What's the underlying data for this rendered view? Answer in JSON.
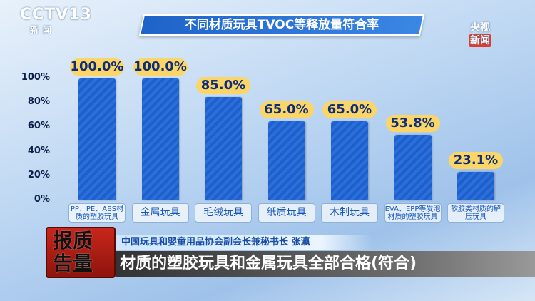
{
  "channel_logo": {
    "name": "CCTV13",
    "sub": "新闻"
  },
  "corner_logo": {
    "line1": "央视",
    "line2": "新闻"
  },
  "lower_third": {
    "program_seal": "报质告量",
    "speaker": "中国玩具和婴童用品协会副会长兼秘书长 张瀛",
    "caption": "材质的塑胶玩具和金属玩具全部合格(符合)"
  },
  "chart_data": {
    "type": "bar",
    "title": "不同材质玩具TVOC等释放量符合率",
    "categories": [
      "PP、PE、ABS材质的塑胶玩具",
      "金属玩具",
      "毛绒玩具",
      "纸质玩具",
      "木制玩具",
      "EVA、EPP等发泡材质的塑胶玩具",
      "软胶类材质的解压玩具"
    ],
    "values": [
      100.0,
      100.0,
      85.0,
      65.0,
      65.0,
      53.8,
      23.1
    ],
    "data_labels": [
      "100.0%",
      "100.0%",
      "85.0%",
      "65.0%",
      "65.0%",
      "53.8%",
      "23.1%"
    ],
    "yticks": [
      "0%",
      "20%",
      "40%",
      "60%",
      "80%",
      "100%"
    ],
    "ylim": [
      0,
      100
    ],
    "bar_color": "#2a6fdc",
    "label_color": "#fbd667"
  }
}
